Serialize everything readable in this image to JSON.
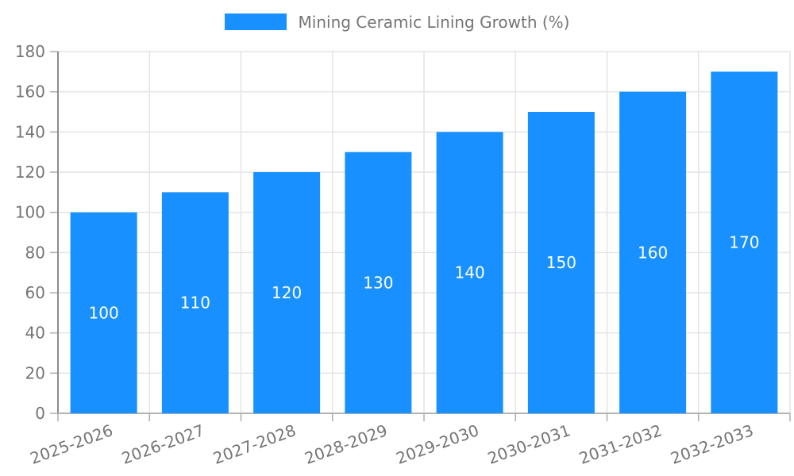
{
  "legend": {
    "label": "Mining Ceramic Lining Growth (%)"
  },
  "chart_data": {
    "type": "bar",
    "title": "Mining Ceramic Lining Growth (%)",
    "categories": [
      "2025-2026",
      "2026-2027",
      "2027-2028",
      "2028-2029",
      "2029-2030",
      "2030-2031",
      "2031-2032",
      "2032-2033"
    ],
    "values": [
      100,
      110,
      120,
      130,
      140,
      150,
      160,
      170
    ],
    "xlabel": "",
    "ylabel": "",
    "ylim": [
      0,
      180
    ],
    "yticks": [
      0,
      20,
      40,
      60,
      80,
      100,
      120,
      140,
      160,
      180
    ],
    "grid": true,
    "legend_position": "top-center",
    "bar_color": "#1890FF",
    "value_label_position": "center",
    "x_label_rotation_deg": -20
  },
  "colors": {
    "background": "#FFFFFF",
    "bar": "#1890FF",
    "grid_line": "#E4E4E4",
    "y_axis_line": "#8C8C8C",
    "x_axis_line": "#B3B3B3",
    "tick_mark": "#ADADAD",
    "axis_text": "#757575",
    "legend_text": "#757575",
    "bar_value_text": "#FFFFFF"
  }
}
